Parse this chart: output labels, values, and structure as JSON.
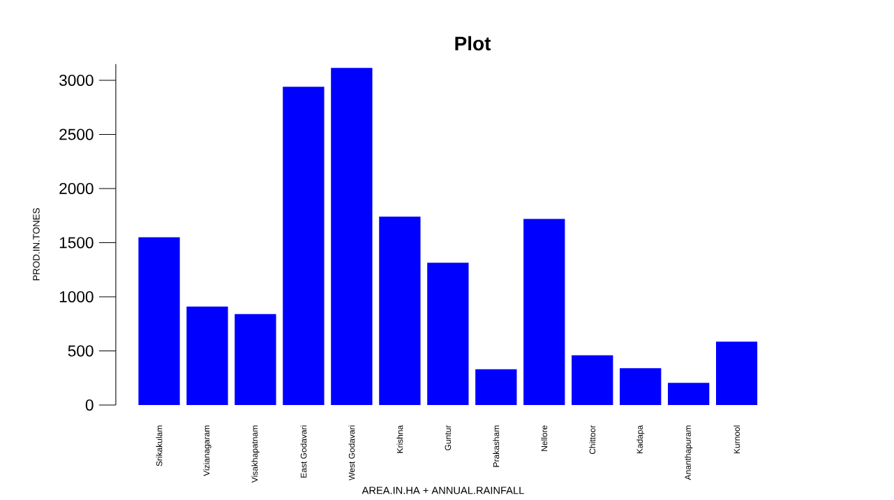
{
  "chart_data": {
    "type": "bar",
    "title": "Plot",
    "xlabel": "AREA.IN.HA + ANNUAL.RAINFALL",
    "ylabel": "PROD.IN.TONES",
    "categories": [
      "Srikakulam",
      "Vizianagaram",
      "Visakhapatnam",
      "East Godavari",
      "West Godavari",
      "Krishna",
      "Guntur",
      "Prakasham",
      "Nellore",
      "Chittoor",
      "Kadapa",
      "Ananthapuram",
      "Kurnool"
    ],
    "values": [
      1550,
      910,
      840,
      2940,
      3115,
      1740,
      1315,
      330,
      1720,
      460,
      340,
      205,
      585
    ],
    "color": "#0000ff",
    "ylim": [
      0,
      3150
    ],
    "yticks": [
      0,
      500,
      1000,
      1500,
      2000,
      2500,
      3000
    ]
  }
}
